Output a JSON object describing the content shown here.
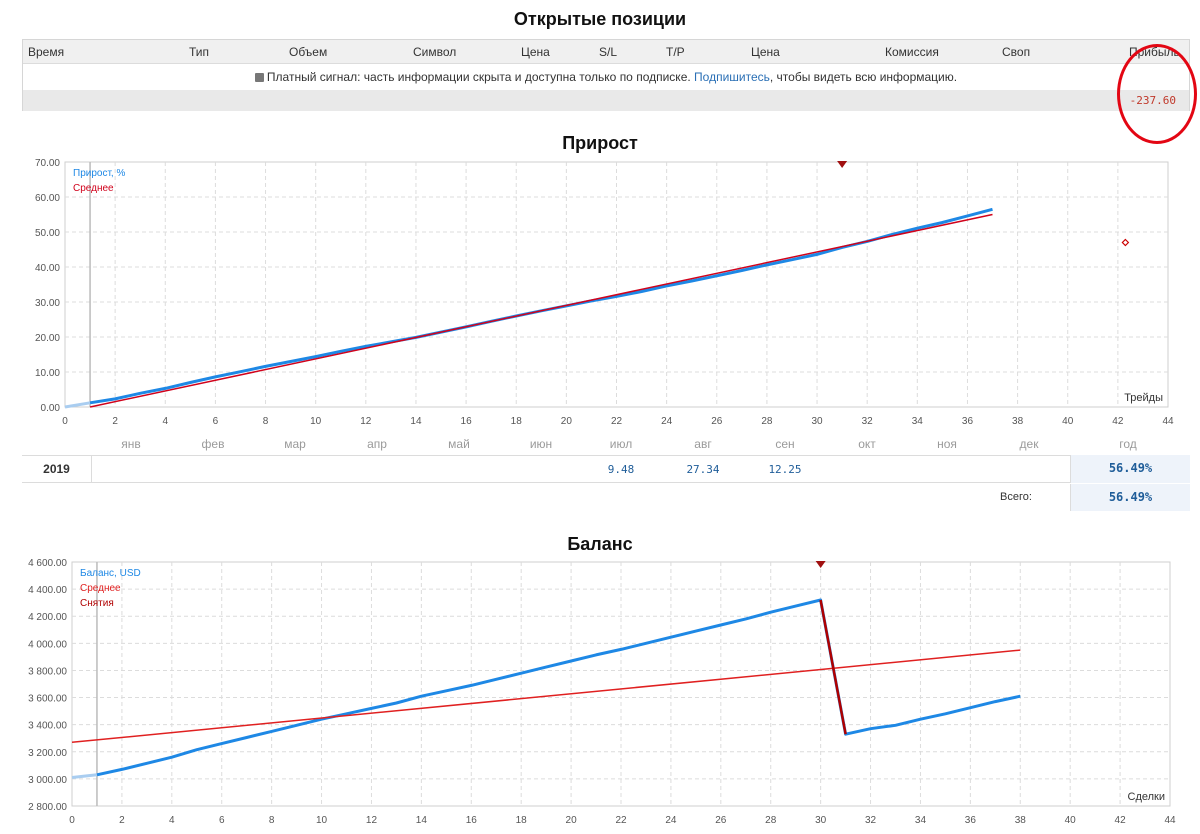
{
  "positions": {
    "title": "Открытые позиции",
    "columns": [
      "Время",
      "Тип",
      "Объем",
      "Символ",
      "Цена",
      "S/L",
      "T/P",
      "Цена",
      "Комиссия",
      "Своп",
      "Прибыль"
    ],
    "note_text": "Платный сигнал: часть информации скрыта и доступна только по подписке. ",
    "note_link": "Подпишитесь",
    "note_tail": ", чтобы видеть всю информацию.",
    "total_profit": "-237.60"
  },
  "growth": {
    "title": "Прирост",
    "month_labels": [
      "янв",
      "фев",
      "мар",
      "апр",
      "май",
      "июн",
      "июл",
      "авг",
      "сен",
      "окт",
      "ноя",
      "дек",
      "год"
    ],
    "year": "2019",
    "monthly_values": [
      {
        "month_index": 6,
        "value": "9.48"
      },
      {
        "month_index": 7,
        "value": "27.34"
      },
      {
        "month_index": 8,
        "value": "12.25"
      }
    ],
    "year_total": "56.49%",
    "total_label": "Всего:",
    "total_value": "56.49%"
  },
  "balance": {
    "title": "Баланс"
  },
  "chart_data": [
    {
      "type": "line",
      "title": "Прирост",
      "xlabel": "Трейды",
      "xlim": [
        0,
        44
      ],
      "ylim": [
        0,
        70
      ],
      "xticks": [
        0,
        2,
        4,
        6,
        8,
        10,
        12,
        14,
        16,
        18,
        20,
        22,
        24,
        26,
        28,
        30,
        32,
        34,
        36,
        38,
        40,
        42,
        44
      ],
      "yticks": [
        0,
        10,
        20,
        30,
        40,
        50,
        60,
        70
      ],
      "ytick_labels": [
        "0.00",
        "10.00",
        "20.00",
        "30.00",
        "40.00",
        "50.00",
        "60.00",
        "70.00"
      ],
      "grid": true,
      "legend": "top-left",
      "series": [
        {
          "name": "Прирост, %",
          "color": "#1e88e5",
          "x": [
            0,
            1,
            2,
            3,
            4,
            5,
            6,
            7,
            8,
            9,
            10,
            11,
            12,
            13,
            14,
            15,
            16,
            17,
            18,
            19,
            20,
            21,
            22,
            23,
            24,
            25,
            26,
            27,
            28,
            29,
            30,
            31,
            32,
            33,
            34,
            35,
            36,
            37
          ],
          "y": [
            0,
            1.2,
            2.3,
            3.9,
            5.3,
            7.0,
            8.6,
            10.1,
            11.6,
            13.0,
            14.4,
            15.9,
            17.3,
            18.6,
            19.9,
            21.4,
            22.9,
            24.5,
            26.0,
            27.5,
            28.9,
            30.3,
            31.6,
            33.0,
            34.6,
            36.0,
            37.5,
            39.0,
            40.6,
            42.1,
            43.6,
            45.6,
            47.3,
            49.3,
            51.1,
            52.7,
            54.6,
            56.5
          ]
        },
        {
          "name": "Среднее",
          "color": "#d0021b",
          "x": [
            1,
            37
          ],
          "y": [
            0,
            55
          ]
        }
      ],
      "markers": [
        {
          "x": 31,
          "y": 70,
          "shape": "triangle-down"
        },
        {
          "x": 42.3,
          "y": 47,
          "shape": "diamond"
        }
      ]
    },
    {
      "type": "line",
      "title": "Баланс",
      "xlabel": "Сделки",
      "xlim": [
        0,
        44
      ],
      "ylim": [
        2800,
        4600
      ],
      "xticks": [
        0,
        2,
        4,
        6,
        8,
        10,
        12,
        14,
        16,
        18,
        20,
        22,
        24,
        26,
        28,
        30,
        32,
        34,
        36,
        38,
        40,
        42,
        44
      ],
      "yticks": [
        2800,
        3000,
        3200,
        3400,
        3600,
        3800,
        4000,
        4200,
        4400,
        4600
      ],
      "ytick_labels": [
        "2 800.00",
        "3 000.00",
        "3 200.00",
        "3 400.00",
        "3 600.00",
        "3 800.00",
        "4 000.00",
        "4 200.00",
        "4 400.00",
        "4 600.00"
      ],
      "grid": true,
      "legend": "top-left",
      "series": [
        {
          "name": "Баланс, USD",
          "color": "#1e88e5",
          "x": [
            0,
            1,
            2,
            3,
            4,
            5,
            6,
            7,
            8,
            9,
            10,
            11,
            12,
            13,
            14,
            15,
            16,
            17,
            18,
            19,
            20,
            21,
            22,
            23,
            24,
            25,
            26,
            27,
            28,
            29,
            30,
            31,
            32,
            33,
            34,
            35,
            36,
            37,
            38
          ],
          "y": [
            3010,
            3030,
            3070,
            3115,
            3160,
            3215,
            3260,
            3305,
            3350,
            3395,
            3440,
            3480,
            3520,
            3560,
            3610,
            3650,
            3690,
            3735,
            3780,
            3825,
            3870,
            3915,
            3955,
            4000,
            4045,
            4090,
            4135,
            4180,
            4230,
            4275,
            4320,
            3330,
            3370,
            3395,
            3440,
            3480,
            3525,
            3570,
            3610
          ]
        },
        {
          "name": "Среднее",
          "color": "#e02020",
          "x": [
            0,
            38
          ],
          "y": [
            3270,
            3950
          ]
        },
        {
          "name": "Снятия",
          "color": "#b00000",
          "x": [
            30,
            31
          ],
          "y": [
            4320,
            3330
          ]
        }
      ],
      "markers": [
        {
          "x": 30,
          "y": 4600,
          "shape": "triangle-down"
        }
      ]
    }
  ]
}
